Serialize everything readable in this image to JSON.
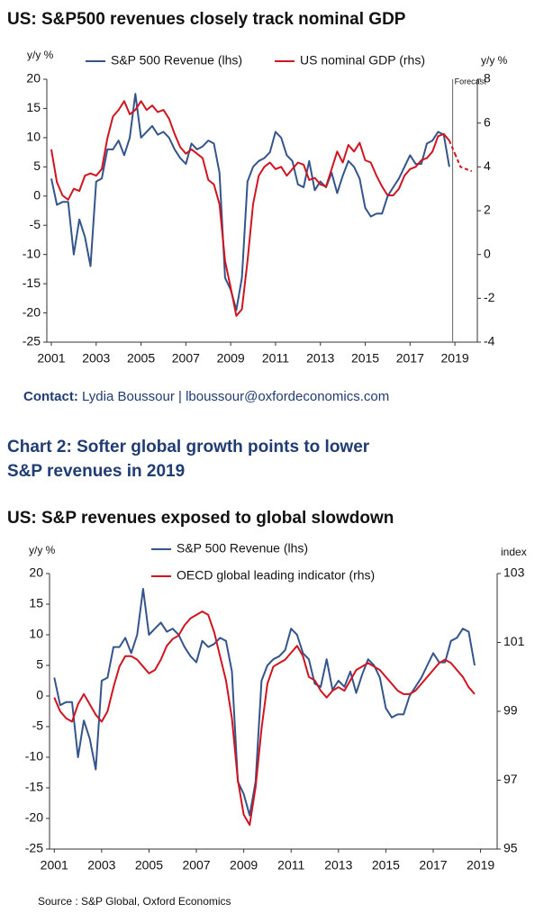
{
  "chart_data": [
    {
      "type": "line",
      "title": "US: S&P500 revenues closely track nominal GDP",
      "ylabel": "y/y %",
      "y2label": "y/y %",
      "x": [
        2001,
        2001.25,
        2001.5,
        2001.75,
        2002,
        2002.25,
        2002.5,
        2002.75,
        2003,
        2003.25,
        2003.5,
        2003.75,
        2004,
        2004.25,
        2004.5,
        2004.75,
        2005,
        2005.25,
        2005.5,
        2005.75,
        2006,
        2006.25,
        2006.5,
        2006.75,
        2007,
        2007.25,
        2007.5,
        2007.75,
        2008,
        2008.25,
        2008.5,
        2008.75,
        2009,
        2009.25,
        2009.5,
        2009.75,
        2010,
        2010.25,
        2010.5,
        2010.75,
        2011,
        2011.25,
        2011.5,
        2011.75,
        2012,
        2012.25,
        2012.5,
        2012.75,
        2013,
        2013.25,
        2013.5,
        2013.75,
        2014,
        2014.25,
        2014.5,
        2014.75,
        2015,
        2015.25,
        2015.5,
        2015.75,
        2016,
        2016.25,
        2016.5,
        2016.75,
        2017,
        2017.25,
        2017.5,
        2017.75,
        2018,
        2018.25,
        2018.5,
        2018.75,
        2019,
        2019.25,
        2019.5,
        2019.75
      ],
      "series": [
        {
          "name": "S&P 500 Revenue (lhs)",
          "color": "#34558b",
          "axis": "y",
          "values": [
            3,
            -1.5,
            -1,
            -1,
            -10,
            -4,
            -7,
            -12,
            2.5,
            3,
            8,
            8,
            9.5,
            7,
            10,
            17.5,
            10,
            11,
            12,
            10.5,
            11,
            10,
            8,
            6.5,
            5.5,
            9,
            8,
            8.5,
            9.5,
            9,
            4,
            -14,
            -16,
            -19.5,
            -14,
            2.5,
            5,
            6,
            6.5,
            7.5,
            11,
            10,
            7,
            6,
            2,
            1.5,
            6,
            1,
            2.5,
            1.5,
            4,
            0.5,
            3.5,
            6,
            5,
            3,
            -2,
            -3.5,
            -3,
            -3,
            0,
            1.5,
            3,
            5,
            7,
            5.5,
            5.5,
            9,
            9.5,
            11,
            10.5,
            5,
            null,
            null,
            null,
            null
          ]
        },
        {
          "name": "US nominal GDP (rhs)",
          "color": "#d01520",
          "axis": "y2",
          "values": [
            4.8,
            3.3,
            2.7,
            2.5,
            3,
            2.9,
            3.6,
            3.7,
            3.6,
            3.9,
            5.3,
            6.3,
            6.6,
            7,
            6.4,
            6.6,
            7,
            6.6,
            6.8,
            6.5,
            6.6,
            6.2,
            5.5,
            4.9,
            4.6,
            4.8,
            4.6,
            4.4,
            3.4,
            3.2,
            2.3,
            -0.3,
            -1.5,
            -2.8,
            -2.5,
            -0.3,
            2.3,
            3.6,
            4,
            4.2,
            3.9,
            4,
            3.6,
            3.9,
            4.2,
            4.1,
            3.4,
            3.5,
            3.2,
            3.1,
            3.9,
            4.7,
            4.2,
            5,
            4.7,
            5.1,
            4.3,
            4.2,
            3.6,
            3.1,
            2.7,
            2.7,
            3,
            3.6,
            3.9,
            4,
            4.3,
            4.4,
            4.7,
            5.4,
            5.5,
            5.2,
            4.6,
            4,
            3.9,
            3.8
          ]
        }
      ],
      "xlim": [
        2000.8,
        2020
      ],
      "xticks": [
        2001,
        2003,
        2005,
        2007,
        2009,
        2011,
        2013,
        2015,
        2017,
        2019
      ],
      "ylim": [
        -25,
        20
      ],
      "yticks": [
        -25,
        -20,
        -15,
        -10,
        -5,
        0,
        5,
        10,
        15,
        20
      ],
      "y2lim": [
        -4,
        8
      ],
      "y2ticks": [
        -4,
        -2,
        0,
        2,
        4,
        6,
        8
      ],
      "forecast": {
        "label": "Forecast",
        "x": 2018.9
      }
    },
    {
      "type": "line",
      "title": "US: S&P revenues exposed to global slowdown",
      "ylabel": "y/y %",
      "y2label": "index",
      "x": [
        2001,
        2001.25,
        2001.5,
        2001.75,
        2002,
        2002.25,
        2002.5,
        2002.75,
        2003,
        2003.25,
        2003.5,
        2003.75,
        2004,
        2004.25,
        2004.5,
        2004.75,
        2005,
        2005.25,
        2005.5,
        2005.75,
        2006,
        2006.25,
        2006.5,
        2006.75,
        2007,
        2007.25,
        2007.5,
        2007.75,
        2008,
        2008.25,
        2008.5,
        2008.75,
        2009,
        2009.25,
        2009.5,
        2009.75,
        2010,
        2010.25,
        2010.5,
        2010.75,
        2011,
        2011.25,
        2011.5,
        2011.75,
        2012,
        2012.25,
        2012.5,
        2012.75,
        2013,
        2013.25,
        2013.5,
        2013.75,
        2014,
        2014.25,
        2014.5,
        2014.75,
        2015,
        2015.25,
        2015.5,
        2015.75,
        2016,
        2016.25,
        2016.5,
        2016.75,
        2017,
        2017.25,
        2017.5,
        2017.75,
        2018,
        2018.25,
        2018.5,
        2018.75
      ],
      "series": [
        {
          "name": "S&P 500 Revenue (lhs)",
          "color": "#34558b",
          "axis": "y",
          "values": [
            3,
            -1.5,
            -1,
            -1,
            -10,
            -4,
            -7,
            -12,
            2.5,
            3,
            8,
            8,
            9.5,
            7,
            10,
            17.5,
            10,
            11,
            12,
            10.5,
            11,
            10,
            8,
            6.5,
            5.5,
            9,
            8,
            8.5,
            9.5,
            9,
            4,
            -14,
            -16,
            -19.5,
            -14,
            2.5,
            5,
            6,
            6.5,
            7.5,
            11,
            10,
            7,
            6,
            2,
            1.5,
            6,
            1,
            2.5,
            1.5,
            4,
            0.5,
            3.5,
            6,
            5,
            3,
            -2,
            -3.5,
            -3,
            -3,
            0,
            1.5,
            3,
            5,
            7,
            5.5,
            5.5,
            9,
            9.5,
            11,
            10.5,
            5
          ]
        },
        {
          "name": "OECD global leading indicator (rhs)",
          "color": "#d01520",
          "axis": "y2",
          "values": [
            99.4,
            99,
            98.8,
            98.7,
            99.2,
            99.5,
            99.2,
            98.9,
            98.7,
            99,
            99.7,
            100.3,
            100.6,
            100.6,
            100.5,
            100.3,
            100.1,
            100.2,
            100.5,
            100.9,
            101.1,
            101.2,
            101.5,
            101.7,
            101.8,
            101.9,
            101.8,
            101.3,
            100.6,
            99.9,
            98.8,
            97,
            96,
            95.7,
            96.8,
            98.5,
            99.8,
            100.3,
            100.4,
            100.5,
            100.7,
            100.9,
            100.6,
            100,
            99.9,
            99.6,
            99.4,
            99.6,
            99.7,
            99.6,
            99.9,
            100.2,
            100.3,
            100.4,
            100.3,
            100.2,
            100,
            99.8,
            99.6,
            99.5,
            99.5,
            99.6,
            99.8,
            100,
            100.2,
            100.4,
            100.5,
            100.4,
            100.2,
            100,
            99.7,
            99.5
          ]
        }
      ],
      "xlim": [
        2000.8,
        2019.7
      ],
      "xticks": [
        2001,
        2003,
        2005,
        2007,
        2009,
        2011,
        2013,
        2015,
        2017,
        2019
      ],
      "ylim": [
        -25,
        20
      ],
      "yticks": [
        -25,
        -20,
        -15,
        -10,
        -5,
        0,
        5,
        10,
        15,
        20
      ],
      "y2lim": [
        95,
        103
      ],
      "y2ticks": [
        95,
        97,
        99,
        101,
        103
      ]
    }
  ],
  "contact": {
    "label": "Contact:",
    "text": "Lydia Boussour | lboussour@oxfordeconomics.com"
  },
  "heading": [
    "Chart 2: Softer global growth points to lower",
    "S&P revenues in 2019"
  ],
  "source": "Source : S&P Global, Oxford Economics"
}
